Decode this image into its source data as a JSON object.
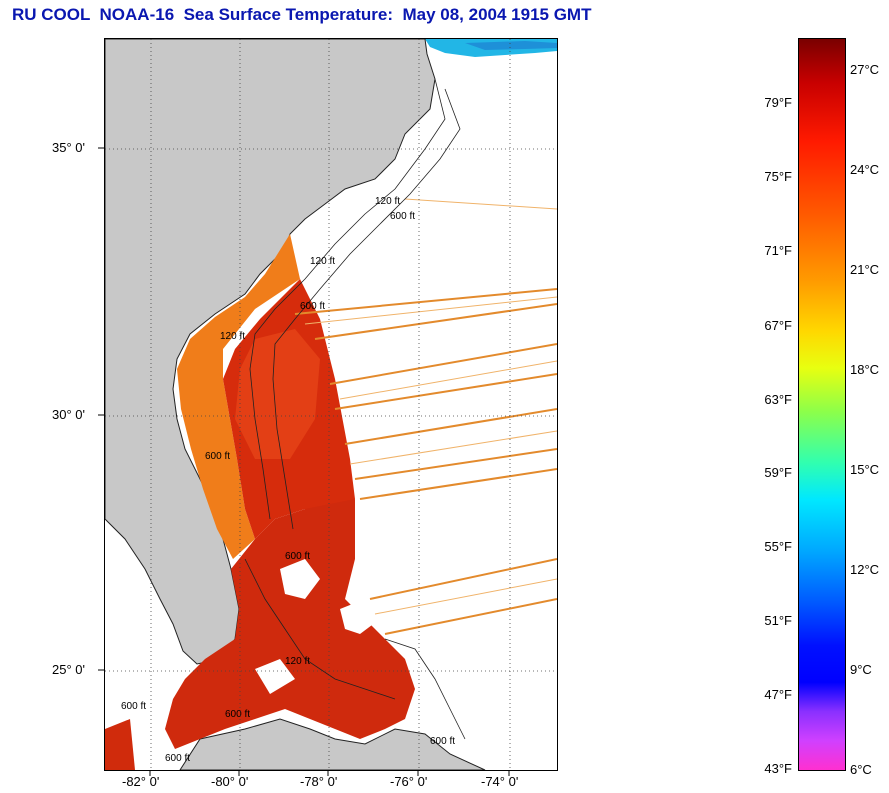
{
  "title": "RU COOL  NOAA-16  Sea Surface Temperature:  May 08, 2004 1915 GMT",
  "map": {
    "latitude_labels": [
      "35° 0'",
      "30° 0'",
      "25° 0'"
    ],
    "longitude_labels": [
      "-82° 0'",
      "-80° 0'",
      "-78° 0'",
      "-76° 0'",
      "-74° 0'"
    ],
    "contour_labels": [
      "120 ft",
      "600 ft",
      "120 ft",
      "600 ft",
      "120 ft",
      "600 ft",
      "120 ft",
      "600 ft",
      "600 ft",
      "600 ft",
      "600 ft",
      "600 ft"
    ],
    "colors": {
      "land": "#c8c8c8",
      "ocean_no_data": "#ffffff",
      "warm_stream": "#d62c0c",
      "shelf_water": "#f07d1a",
      "cool_water": "#25b5e8"
    }
  },
  "colorbar": {
    "fahrenheit_labels": [
      "79°F",
      "75°F",
      "71°F",
      "67°F",
      "63°F",
      "59°F",
      "55°F",
      "51°F",
      "47°F",
      "43°F"
    ],
    "celsius_labels": [
      "27°C",
      "24°C",
      "21°C",
      "18°C",
      "15°C",
      "12°C",
      "9°C",
      "6°C"
    ]
  }
}
